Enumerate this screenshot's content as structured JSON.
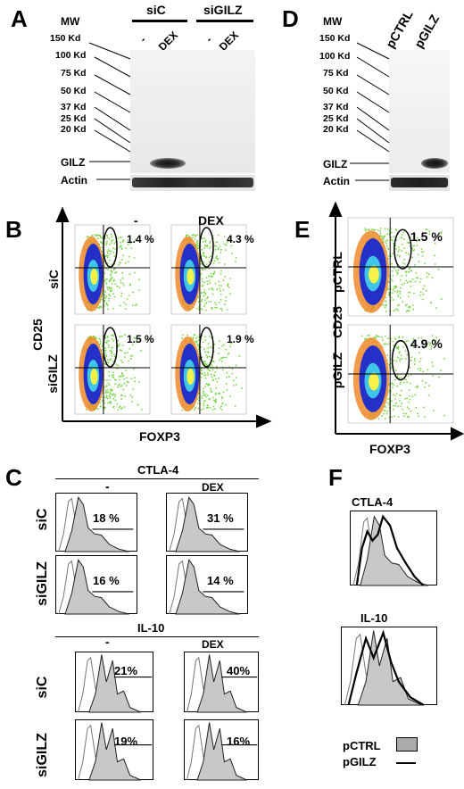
{
  "panels": {
    "A": "A",
    "B": "B",
    "C": "C",
    "D": "D",
    "E": "E",
    "F": "F"
  },
  "mw_label": "MW",
  "mw_markers_A": [
    "150 Kd",
    "100 Kd",
    "75 Kd",
    "50 Kd",
    "37 Kd",
    "25 Kd",
    "20 Kd"
  ],
  "mw_markers_D": [
    "150 Kd",
    "100 Kd",
    "75 Kd",
    "50 Kd",
    "37 Kd",
    "25 Kd",
    "20 Kd"
  ],
  "gilz_label": "GILZ",
  "actin_label": "Actin",
  "panelA": {
    "group1": "siC",
    "group2": "siGILZ",
    "lanes": [
      "-",
      "DEX",
      "-",
      "DEX"
    ]
  },
  "panelD": {
    "lanes": [
      "pCTRL",
      "pGILZ"
    ]
  },
  "panelB": {
    "col_headers": [
      "-",
      "DEX"
    ],
    "row_labels": [
      "siC",
      "siGILZ"
    ],
    "y_axis": "CD25",
    "x_axis": "FOXP3",
    "percents": [
      "1.4 %",
      "4.3 %",
      "1.5 %",
      "1.9 %"
    ]
  },
  "panelE": {
    "row_labels": [
      "pCTRL",
      "pGILZ"
    ],
    "y_axis": "CD25",
    "x_axis": "FOXP3",
    "percents": [
      "1.5 %",
      "4.9 %"
    ]
  },
  "panelC": {
    "ctla4_title": "CTLA-4",
    "il10_title": "IL-10",
    "col_headers": [
      "-",
      "DEX"
    ],
    "row_labels": [
      "siC",
      "siGILZ"
    ],
    "ctla4_percents": [
      "18 %",
      "31 %",
      "16 %",
      "14 %"
    ],
    "il10_percents": [
      "21%",
      "40%",
      "19%",
      "16%"
    ]
  },
  "panelF": {
    "ctla4_title": "CTLA-4",
    "il10_title": "IL-10",
    "legend": [
      "pCTRL",
      "pGILZ"
    ]
  },
  "colors": {
    "dot_green": "#6fd33b",
    "dot_orange": "#f08a2a",
    "dot_blue": "#2530c8",
    "dot_cyan": "#3ec5e8",
    "dot_yellow": "#f6f24a",
    "hist_fill": "#c8c8c8"
  }
}
